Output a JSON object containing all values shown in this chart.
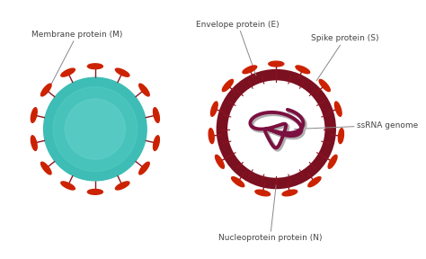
{
  "bg_color": "#ffffff",
  "teal_body": "#3DBDB5",
  "teal_light": "#5ECFC8",
  "dark_red_ring": "#7B1020",
  "spike_red": "#CC2200",
  "spike_stem": "#8B1520",
  "rna_purple": "#7B1040",
  "rna_gray": "#B0B0B0",
  "label_color": "#444444",
  "arrow_color": "#888888",
  "font_size": 6.5,
  "labels": {
    "membrane": "Membrane protein (M)",
    "envelope": "Envelope protein (E)",
    "spike": "Spike protein (S)",
    "nucleoprotein": "Nucleoprotein protein (N)",
    "ssrna": "ssRNA genome"
  }
}
